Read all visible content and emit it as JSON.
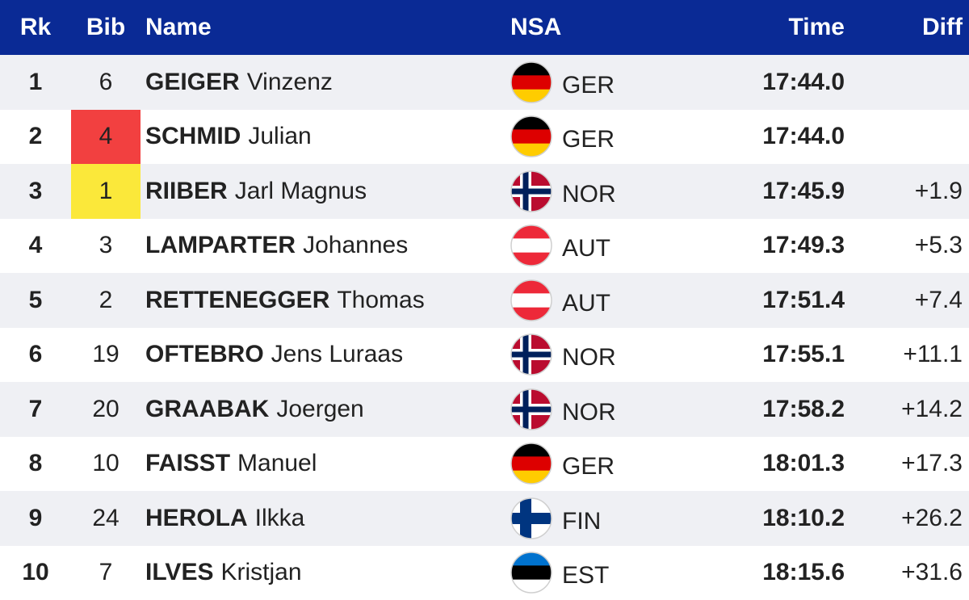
{
  "table": {
    "header": {
      "rank": "Rk",
      "bib": "Bib",
      "name": "Name",
      "nsa": "NSA",
      "time": "Time",
      "diff": "Diff"
    },
    "header_color": "#0a2a95",
    "rows": [
      {
        "rank": "1",
        "bib": "6",
        "surname": "GEIGER",
        "given": "Vinzenz",
        "nsa": "GER",
        "time": "17:44.0",
        "flag": {
          "pattern": "stripes",
          "colors": [
            "#000000",
            "#dd0000",
            "#ffcc00"
          ]
        }
      },
      {
        "rank": "2",
        "bib": "4",
        "bib_color": "#f24040",
        "surname": "SCHMID",
        "given": "Julian",
        "nsa": "GER",
        "time": "17:44.0",
        "flag": {
          "pattern": "stripes",
          "colors": [
            "#000000",
            "#dd0000",
            "#ffcc00"
          ]
        }
      },
      {
        "rank": "3",
        "bib": "1",
        "bib_color": "#fbe83a",
        "surname": "RIIBER",
        "given": "Jarl Magnus",
        "nsa": "NOR",
        "time": "17:45.9",
        "diff": "+1.9",
        "flag": {
          "pattern": "cross",
          "colors": [
            "#ba0c2f",
            "#ffffff",
            "#00205b"
          ]
        }
      },
      {
        "rank": "4",
        "bib": "3",
        "surname": "LAMPARTER",
        "given": "Johannes",
        "nsa": "AUT",
        "time": "17:49.3",
        "diff": "+5.3",
        "flag": {
          "pattern": "stripes",
          "colors": [
            "#ed2939",
            "#ffffff",
            "#ed2939"
          ]
        }
      },
      {
        "rank": "5",
        "bib": "2",
        "surname": "RETTENEGGER",
        "given": "Thomas",
        "nsa": "AUT",
        "time": "17:51.4",
        "diff": "+7.4",
        "flag": {
          "pattern": "stripes",
          "colors": [
            "#ed2939",
            "#ffffff",
            "#ed2939"
          ]
        }
      },
      {
        "rank": "6",
        "bib": "19",
        "surname": "OFTEBRO",
        "given": "Jens Luraas",
        "nsa": "NOR",
        "time": "17:55.1",
        "diff": "+11.1",
        "flag": {
          "pattern": "cross",
          "colors": [
            "#ba0c2f",
            "#ffffff",
            "#00205b"
          ]
        }
      },
      {
        "rank": "7",
        "bib": "20",
        "surname": "GRAABAK",
        "given": "Joergen",
        "nsa": "NOR",
        "time": "17:58.2",
        "diff": "+14.2",
        "flag": {
          "pattern": "cross",
          "colors": [
            "#ba0c2f",
            "#ffffff",
            "#00205b"
          ]
        }
      },
      {
        "rank": "8",
        "bib": "10",
        "surname": "FAISST",
        "given": "Manuel",
        "nsa": "GER",
        "time": "18:01.3",
        "diff": "+17.3",
        "flag": {
          "pattern": "stripes",
          "colors": [
            "#000000",
            "#dd0000",
            "#ffcc00"
          ]
        }
      },
      {
        "rank": "9",
        "bib": "24",
        "surname": "HEROLA",
        "given": "Ilkka",
        "nsa": "FIN",
        "time": "18:10.2",
        "diff": "+26.2",
        "flag": {
          "pattern": "cross",
          "colors": [
            "#ffffff",
            "#003580",
            "#003580"
          ]
        }
      },
      {
        "rank": "10",
        "bib": "7",
        "surname": "ILVES",
        "given": "Kristjan",
        "nsa": "EST",
        "time": "18:15.6",
        "diff": "+31.6",
        "flag": {
          "pattern": "stripes",
          "colors": [
            "#0072ce",
            "#000000",
            "#ffffff"
          ]
        }
      }
    ]
  }
}
